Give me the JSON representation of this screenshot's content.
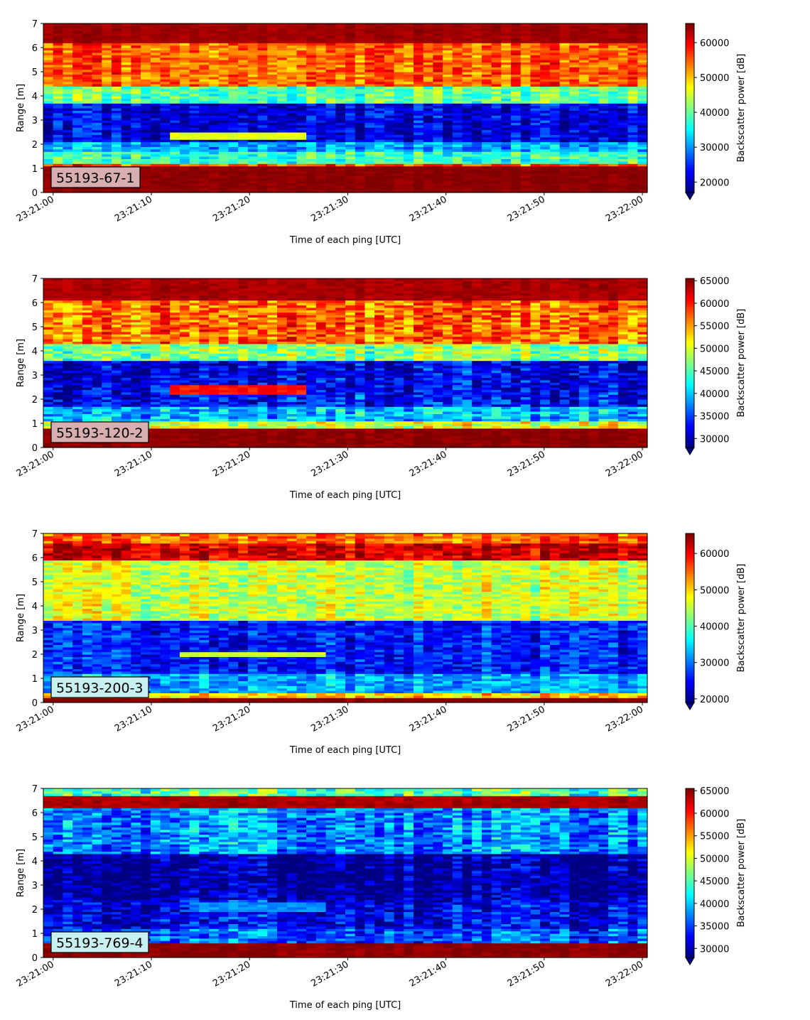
{
  "chart_data": [
    {
      "type": "heatmap",
      "label": "55193-67-1",
      "label_bg": "#d8aeb0",
      "xlabel": "Time of each ping [UTC]",
      "ylabel": "Range [m]",
      "colorbar_label": "Backscatter power [dB]",
      "x_ticks": [
        "23:21:00",
        "23:21:10",
        "23:21:20",
        "23:21:30",
        "23:21:40",
        "23:21:50",
        "23:22:00"
      ],
      "y_ticks": [
        0,
        1,
        2,
        3,
        4,
        5,
        6,
        7
      ],
      "ylim": [
        0,
        7
      ],
      "clim": [
        17000,
        65500
      ],
      "colorbar_ticks": [
        20000,
        30000,
        40000,
        50000,
        60000
      ],
      "colormap": "jet",
      "features": [
        {
          "range_m": [
            0.2,
            1.1
          ],
          "value": 65000
        },
        {
          "range_m": [
            1.1,
            1.25
          ],
          "value": 56000
        },
        {
          "range_m": [
            1.25,
            1.7
          ],
          "value": 38000
        },
        {
          "range_m": [
            1.7,
            2.1
          ],
          "value": 31000
        },
        {
          "range_m": [
            2.1,
            3.7
          ],
          "value": 22000
        },
        {
          "range_m": [
            3.7,
            4.4
          ],
          "value": 40000
        },
        {
          "range_m": [
            4.4,
            6.2
          ],
          "value": 55000
        },
        {
          "range_m": [
            6.2,
            7.0
          ],
          "value": 64000
        },
        {
          "target": true,
          "range_m": [
            2.2,
            2.55
          ],
          "time_s": [
            12,
            26
          ],
          "value": 46000
        }
      ]
    },
    {
      "type": "heatmap",
      "label": "55193-120-2",
      "label_bg": "#d8aeb0",
      "xlabel": "Time of each ping [UTC]",
      "ylabel": "Range [m]",
      "colorbar_label": "Backscatter power [dB]",
      "x_ticks": [
        "23:21:00",
        "23:21:10",
        "23:21:20",
        "23:21:30",
        "23:21:40",
        "23:21:50",
        "23:22:00"
      ],
      "y_ticks": [
        0,
        1,
        2,
        3,
        4,
        5,
        6,
        7
      ],
      "ylim": [
        0,
        7
      ],
      "clim": [
        28000,
        65500
      ],
      "colorbar_ticks": [
        30000,
        35000,
        40000,
        45000,
        50000,
        55000,
        60000,
        65000
      ],
      "colormap": "jet",
      "features": [
        {
          "range_m": [
            0.2,
            0.8
          ],
          "value": 65000
        },
        {
          "range_m": [
            0.8,
            1.1
          ],
          "value": 50000
        },
        {
          "range_m": [
            1.1,
            1.7
          ],
          "value": 40000
        },
        {
          "range_m": [
            1.7,
            2.2
          ],
          "value": 33000
        },
        {
          "range_m": [
            2.2,
            3.6
          ],
          "value": 32000
        },
        {
          "range_m": [
            3.6,
            4.3
          ],
          "value": 47000
        },
        {
          "range_m": [
            4.3,
            6.1
          ],
          "value": 57000
        },
        {
          "range_m": [
            6.1,
            7.0
          ],
          "value": 64000
        },
        {
          "target": true,
          "range_m": [
            2.2,
            2.6
          ],
          "time_s": [
            12,
            26
          ],
          "value": 60000
        }
      ]
    },
    {
      "type": "heatmap",
      "label": "55193-200-3",
      "label_bg": "#c9f0f0",
      "xlabel": "Time of each ping [UTC]",
      "ylabel": "Range [m]",
      "colorbar_label": "Backscatter power [dB]",
      "x_ticks": [
        "23:21:00",
        "23:21:10",
        "23:21:20",
        "23:21:30",
        "23:21:40",
        "23:21:50",
        "23:22:00"
      ],
      "y_ticks": [
        0,
        1,
        2,
        3,
        4,
        5,
        6,
        7
      ],
      "ylim": [
        0,
        7
      ],
      "clim": [
        19000,
        65500
      ],
      "colorbar_ticks": [
        20000,
        30000,
        40000,
        50000,
        60000
      ],
      "colormap": "jet",
      "features": [
        {
          "range_m": [
            0.1,
            0.25
          ],
          "value": 65000
        },
        {
          "range_m": [
            0.25,
            0.45
          ],
          "value": 50000
        },
        {
          "range_m": [
            0.45,
            1.2
          ],
          "value": 33000
        },
        {
          "range_m": [
            1.2,
            3.4
          ],
          "value": 26000
        },
        {
          "range_m": [
            3.4,
            5.9
          ],
          "value": 46000
        },
        {
          "range_m": [
            5.9,
            6.6
          ],
          "value": 62000
        },
        {
          "range_m": [
            6.6,
            7.0
          ],
          "value": 55000
        },
        {
          "target": true,
          "range_m": [
            1.95,
            2.15
          ],
          "time_s": [
            13,
            28
          ],
          "value": 46000
        }
      ]
    },
    {
      "type": "heatmap",
      "label": "55193-769-4",
      "label_bg": "#c9f0f0",
      "xlabel": "Time of each ping [UTC]",
      "ylabel": "Range [m]",
      "colorbar_label": "Backscatter power [dB]",
      "x_ticks": [
        "23:21:00",
        "23:21:10",
        "23:21:20",
        "23:21:30",
        "23:21:40",
        "23:21:50",
        "23:22:00"
      ],
      "y_ticks": [
        0,
        1,
        2,
        3,
        4,
        5,
        6,
        7
      ],
      "ylim": [
        0,
        7
      ],
      "clim": [
        28000,
        65500
      ],
      "colorbar_ticks": [
        30000,
        35000,
        40000,
        45000,
        50000,
        55000,
        60000,
        65000
      ],
      "colormap": "jet",
      "features": [
        {
          "range_m": [
            0.2,
            0.6
          ],
          "value": 65000
        },
        {
          "range_m": [
            0.6,
            1.2
          ],
          "value": 36000
        },
        {
          "range_m": [
            1.2,
            2.4
          ],
          "value": 32000
        },
        {
          "range_m": [
            2.4,
            4.3
          ],
          "value": 29000
        },
        {
          "range_m": [
            4.3,
            6.2
          ],
          "value": 38000
        },
        {
          "range_m": [
            6.2,
            6.7
          ],
          "value": 64000
        },
        {
          "range_m": [
            6.7,
            7.0
          ],
          "value": 45000
        },
        {
          "target": true,
          "range_m": [
            1.9,
            2.3
          ],
          "time_s": [
            15,
            28
          ],
          "value": 38000
        }
      ]
    }
  ]
}
